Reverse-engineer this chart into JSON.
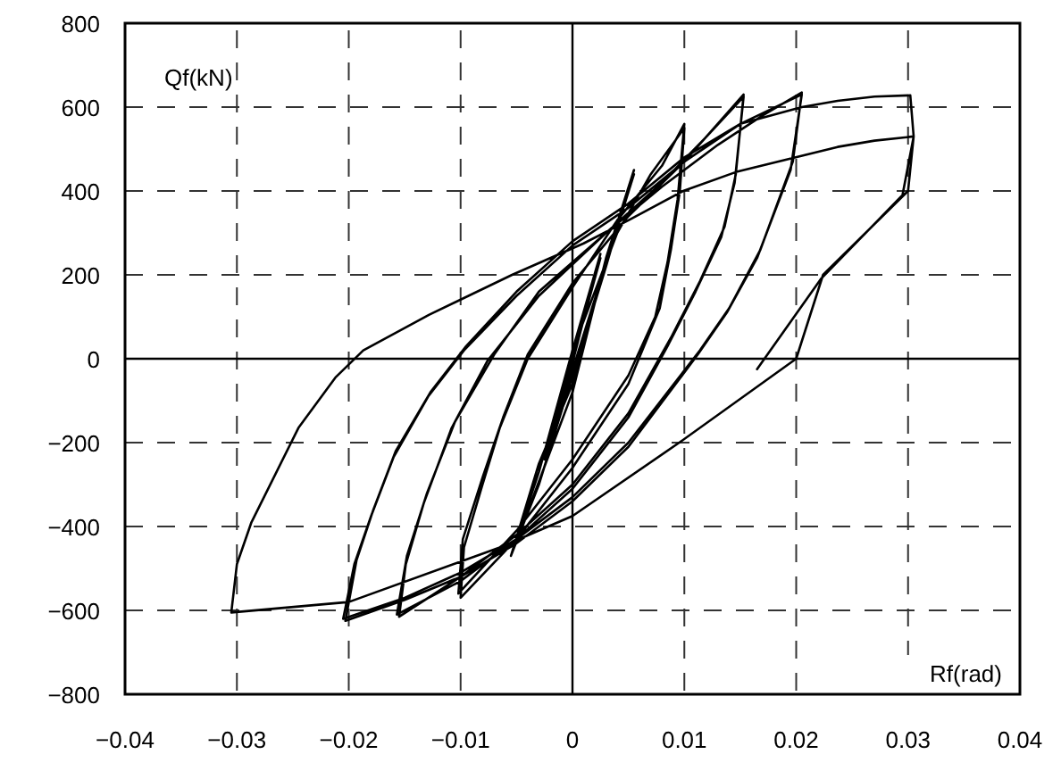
{
  "chart_data": {
    "type": "line",
    "xlabel": "Rf(rad)",
    "ylabel": "Qf(kN)",
    "xlim": [
      -0.04,
      0.04
    ],
    "ylim": [
      -800,
      800
    ],
    "xticks": [
      {
        "value": -0.04,
        "label": "−0.04"
      },
      {
        "value": -0.03,
        "label": "−0.03"
      },
      {
        "value": -0.02,
        "label": "−0.02"
      },
      {
        "value": -0.01,
        "label": "−0.01"
      },
      0,
      0.01,
      0.02,
      0.03,
      0.04
    ],
    "yticks": [
      {
        "value": -800,
        "label": "−800"
      },
      {
        "value": -600,
        "label": "−600"
      },
      {
        "value": -400,
        "label": "−400"
      },
      {
        "value": -200,
        "label": "−200"
      },
      0,
      200,
      400,
      600,
      800
    ],
    "grid": true,
    "marker": "none",
    "line_style": "solid",
    "series": [
      {
        "color": "#000000",
        "x": [
          0,
          0.001,
          0,
          -0.001,
          0,
          0.001,
          -0.001,
          0.0025,
          0.001,
          0,
          -0.0025,
          -0.001,
          0,
          0.0025,
          0,
          -0.0025,
          0.0055,
          0.003,
          0,
          -0.003,
          -0.0055,
          -0.003,
          0,
          0.003,
          0.0055,
          0.003,
          0,
          -0.0055,
          -0.003,
          0,
          0.004,
          0.007,
          0.01,
          0.0096,
          0.0088,
          0.0078,
          0.005,
          0,
          -0.005,
          -0.01,
          -0.0097,
          -0.0081,
          -0.0065,
          -0.004,
          0,
          0.004,
          0.008,
          0.01,
          0.0094,
          0.0085,
          0.0074,
          0.005,
          0,
          -0.005,
          -0.0102,
          -0.0098,
          -0.008,
          -0.0062,
          -0.004,
          0,
          0.005,
          0.01,
          0.0153,
          0.0146,
          0.0136,
          0.0114,
          0.0088,
          0.005,
          0,
          -0.005,
          -0.01,
          -0.0155,
          -0.0149,
          -0.0133,
          -0.0108,
          -0.0076,
          -0.003,
          0.003,
          0.008,
          0.012,
          0.0153,
          0.0145,
          0.0133,
          0.011,
          0.0085,
          0.005,
          0,
          -0.005,
          -0.01,
          -0.0157,
          -0.0148,
          -0.013,
          -0.0105,
          -0.007,
          -0.003,
          0.003,
          0.008,
          0.013,
          0.017,
          0.0205,
          0.0197,
          0.0168,
          0.014,
          0.0114,
          0.005,
          0,
          -0.005,
          -0.01,
          -0.015,
          -0.0205,
          -0.0195,
          -0.018,
          -0.016,
          -0.0129,
          -0.0097,
          -0.005,
          0,
          0.005,
          0.01,
          0.015,
          0.0205,
          0.0195,
          0.0165,
          0.0138,
          0.0112,
          0.005,
          0,
          -0.005,
          -0.01,
          -0.015,
          -0.0203,
          -0.0193,
          -0.0178,
          -0.0158,
          -0.0127,
          -0.0095,
          -0.005,
          0,
          0.005,
          0.01,
          0.015,
          0.0205,
          0.0237,
          0.027,
          0.0302,
          0.0305,
          0.03,
          0.0224,
          0.02,
          0.0096,
          0,
          -0.0065,
          -0.02,
          -0.0305,
          -0.03,
          -0.0287,
          -0.0245,
          -0.0212,
          -0.0187,
          -0.0128,
          -0.0054,
          0.001,
          0.005,
          0.0099,
          0.0146,
          0.0237,
          0.027,
          0.0305,
          0.0295,
          0.0222,
          0.0165
        ],
        "values": [
          0,
          100,
          10,
          -100,
          -10,
          100,
          -100,
          240,
          100,
          0,
          -230,
          -100,
          20,
          250,
          -10,
          -240,
          440,
          230,
          -60,
          -250,
          -470,
          -300,
          -40,
          220,
          450,
          240,
          -80,
          -470,
          -270,
          20,
          300,
          440,
          550,
          400,
          260,
          120,
          -60,
          -260,
          -430,
          -570,
          -450,
          -305,
          -165,
          0,
          170,
          330,
          460,
          560,
          380,
          230,
          100,
          -40,
          -240,
          -410,
          -560,
          -430,
          -280,
          -140,
          10,
          180,
          340,
          470,
          630,
          440,
          315,
          185,
          50,
          -130,
          -300,
          -420,
          -520,
          -615,
          -490,
          -345,
          -165,
          -5,
          150,
          300,
          420,
          530,
          625,
          420,
          290,
          160,
          30,
          -140,
          -310,
          -430,
          -530,
          -610,
          -470,
          -320,
          -150,
          10,
          160,
          300,
          410,
          510,
          580,
          635,
          470,
          260,
          120,
          20,
          -200,
          -330,
          -430,
          -510,
          -570,
          -620,
          -490,
          -375,
          -235,
          -90,
          20,
          150,
          270,
          360,
          470,
          560,
          630,
          450,
          240,
          110,
          10,
          -210,
          -340,
          -440,
          -520,
          -575,
          -625,
          -480,
          -360,
          -220,
          -80,
          30,
          160,
          280,
          370,
          480,
          560,
          600,
          615,
          625,
          628,
          530,
          400,
          200,
          0,
          -199,
          -375,
          -450,
          -580,
          -605,
          -490,
          -390,
          -165,
          -45,
          20,
          105,
          200,
          275,
          330,
          400,
          445,
          505,
          520,
          530,
          390,
          190,
          -25
        ]
      }
    ]
  }
}
